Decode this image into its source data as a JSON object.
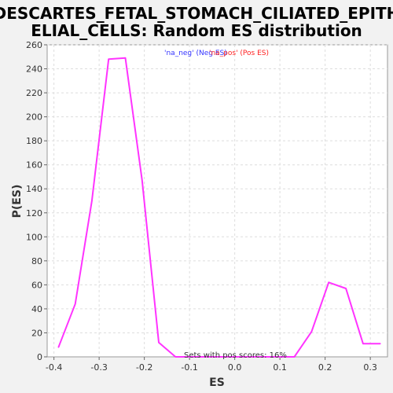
{
  "chart_data": {
    "type": "line",
    "title_line1": "DESCARTES_FETAL_STOMACH_CILIATED_EPITH",
    "title_line2": "ELIAL_CELLS: Random ES distribution",
    "xlabel": "ES",
    "ylabel": "P(ES)",
    "xlim": [
      -0.415,
      0.338
    ],
    "ylim": [
      0,
      260
    ],
    "xticks": [
      -0.4,
      -0.3,
      -0.2,
      -0.1,
      0.0,
      0.1,
      0.2,
      0.3
    ],
    "xtick_labels": [
      "-0.4",
      "-0.3",
      "-0.2",
      "-0.1",
      "0.0",
      "0.1",
      "0.2",
      "0.3"
    ],
    "yticks": [
      0,
      20,
      40,
      60,
      80,
      100,
      120,
      140,
      160,
      180,
      200,
      220,
      240,
      260
    ],
    "ytick_labels": [
      "0",
      "20",
      "40",
      "60",
      "80",
      "100",
      "120",
      "140",
      "160",
      "180",
      "200",
      "220",
      "240",
      "260"
    ],
    "grid": true,
    "legend_neg": "'na_neg' (Neg ES)",
    "legend_pos": "'na_pos' (Pos ES)",
    "legend_neg_color": "#3333ff",
    "legend_pos_color": "#ff2020",
    "annotation": "Sets with pos scores: 16%",
    "line_color": "#ff33ff",
    "series": [
      {
        "x": [
          -0.39,
          -0.353,
          -0.316,
          -0.279,
          -0.242,
          -0.205,
          -0.168,
          -0.131,
          -0.094,
          -0.057,
          -0.02,
          0.017,
          0.054,
          0.091,
          0.132,
          0.17,
          0.208,
          0.246,
          0.284,
          0.322
        ],
        "y": [
          8,
          44,
          130,
          248,
          249,
          147,
          12,
          0,
          0,
          0,
          0,
          0,
          0,
          0,
          0,
          21,
          62,
          57,
          11,
          11
        ]
      }
    ]
  }
}
